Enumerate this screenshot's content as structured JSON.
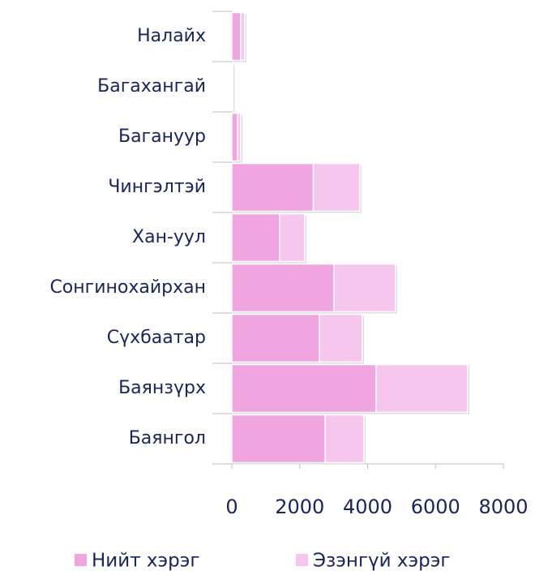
{
  "chart_data": {
    "type": "bar",
    "orientation": "horizontal",
    "stacked": true,
    "categories": [
      "Налайх",
      "Багахангай",
      "Багануур",
      "Чингэлтэй",
      "Хан-уул",
      "Сонгинохайрхан",
      "Сүхбаатар",
      "Баянзүрх",
      "Баянгол"
    ],
    "series": [
      {
        "name": "Нийт хэрэг",
        "color": "#f0a4e0",
        "values": [
          260,
          20,
          170,
          2400,
          1410,
          3010,
          2580,
          4250,
          2750
        ]
      },
      {
        "name": "Эзэнгүй хэрэг",
        "color": "#f7c6ee",
        "values": [
          120,
          10,
          90,
          1370,
          740,
          1810,
          1265,
          2700,
          1140
        ]
      }
    ],
    "xlim": [
      0,
      8000
    ],
    "xticks": [
      0,
      2000,
      4000,
      6000,
      8000
    ],
    "legend": "bottom"
  }
}
